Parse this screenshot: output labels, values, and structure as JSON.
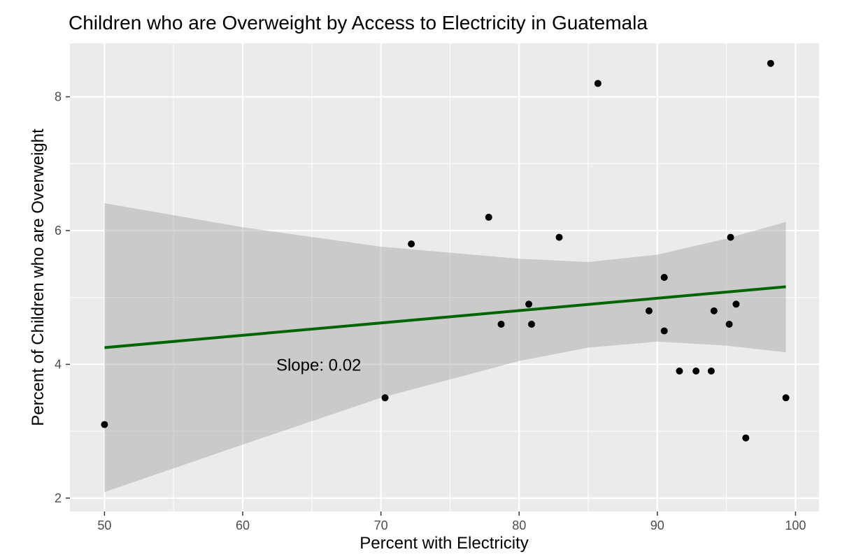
{
  "chart_data": {
    "type": "scatter",
    "title": "Children who are Overweight by Access to Electricity in Guatemala",
    "xlabel": "Percent with Electricity",
    "ylabel": "Percent of Children who are Overweight",
    "xlim": [
      47.5,
      101.7
    ],
    "ylim": [
      1.8,
      8.8
    ],
    "x_ticks": [
      50,
      60,
      70,
      80,
      90,
      100
    ],
    "y_ticks": [
      2,
      4,
      6,
      8
    ],
    "grid": true,
    "background_color": "#ebebeb",
    "point_color": "#000000",
    "points": [
      {
        "x": 50.0,
        "y": 3.1
      },
      {
        "x": 70.3,
        "y": 3.5
      },
      {
        "x": 72.2,
        "y": 5.8
      },
      {
        "x": 77.8,
        "y": 6.2
      },
      {
        "x": 78.7,
        "y": 4.6
      },
      {
        "x": 80.7,
        "y": 4.9
      },
      {
        "x": 80.9,
        "y": 4.6
      },
      {
        "x": 82.9,
        "y": 5.9
      },
      {
        "x": 85.7,
        "y": 8.2
      },
      {
        "x": 89.4,
        "y": 4.8
      },
      {
        "x": 90.5,
        "y": 5.3
      },
      {
        "x": 90.5,
        "y": 4.5
      },
      {
        "x": 91.6,
        "y": 3.9
      },
      {
        "x": 92.8,
        "y": 3.9
      },
      {
        "x": 93.9,
        "y": 3.9
      },
      {
        "x": 94.1,
        "y": 4.8
      },
      {
        "x": 95.2,
        "y": 4.6
      },
      {
        "x": 95.3,
        "y": 5.9
      },
      {
        "x": 95.7,
        "y": 4.9
      },
      {
        "x": 96.4,
        "y": 2.9
      },
      {
        "x": 98.2,
        "y": 8.5
      },
      {
        "x": 99.3,
        "y": 3.5
      }
    ],
    "trend_line": {
      "color": "#006400",
      "start": {
        "x": 50.0,
        "y": 4.25
      },
      "end": {
        "x": 99.3,
        "y": 5.16
      }
    },
    "confidence_band": {
      "color": "#999999",
      "upper": [
        {
          "x": 50.0,
          "y": 6.41
        },
        {
          "x": 60.0,
          "y": 6.05
        },
        {
          "x": 70.0,
          "y": 5.76
        },
        {
          "x": 80.0,
          "y": 5.58
        },
        {
          "x": 85.0,
          "y": 5.53
        },
        {
          "x": 90.0,
          "y": 5.64
        },
        {
          "x": 95.0,
          "y": 5.88
        },
        {
          "x": 99.3,
          "y": 6.13
        }
      ],
      "lower": [
        {
          "x": 50.0,
          "y": 2.09
        },
        {
          "x": 60.0,
          "y": 2.8
        },
        {
          "x": 70.0,
          "y": 3.5
        },
        {
          "x": 80.0,
          "y": 4.05
        },
        {
          "x": 85.0,
          "y": 4.25
        },
        {
          "x": 90.0,
          "y": 4.34
        },
        {
          "x": 95.0,
          "y": 4.28
        },
        {
          "x": 99.3,
          "y": 4.18
        }
      ]
    },
    "annotation": {
      "text": "Slope: 0.02",
      "x": 65.5,
      "y": 4.0
    }
  }
}
